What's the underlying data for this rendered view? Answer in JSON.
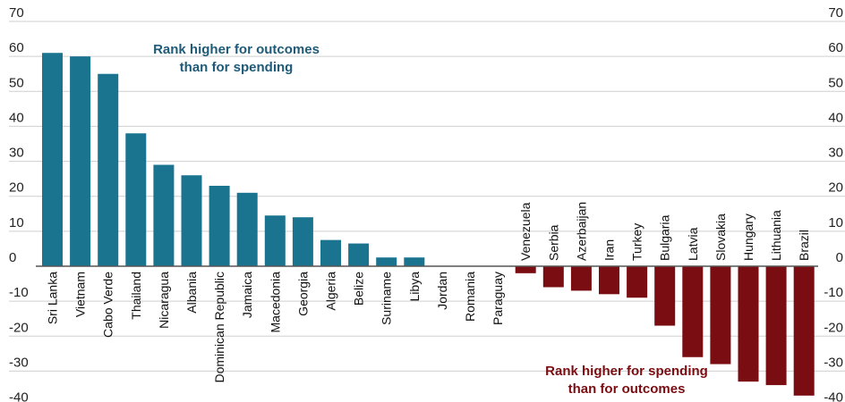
{
  "chart_data": {
    "type": "bar",
    "categories": [
      "Sri Lanka",
      "Vietnam",
      "Cabo Verde",
      "Thailand",
      "Nicaragua",
      "Albania",
      "Dominican Republic",
      "Jamaica",
      "Macedonia",
      "Georgia",
      "Algeria",
      "Belize",
      "Suriname",
      "Libya",
      "Jordan",
      "Romania",
      "Paraguay",
      "Venezuela",
      "Serbia",
      "Azerbaijan",
      "Iran",
      "Turkey",
      "Bulgaria",
      "Latvia",
      "Slovakia",
      "Hungary",
      "Lithuania",
      "Brazil"
    ],
    "values": [
      61,
      60,
      55,
      38,
      29,
      26,
      23,
      21,
      14.5,
      14,
      7.5,
      6.5,
      2.5,
      2.5,
      0,
      0,
      0,
      -2,
      -6,
      -7,
      -8,
      -9,
      -17,
      -26,
      -28,
      -33,
      -34,
      -37
    ],
    "ylim": [
      -40,
      70
    ],
    "yticks": [
      70,
      60,
      50,
      40,
      30,
      20,
      10,
      0,
      -10,
      -20,
      -30,
      -40
    ],
    "colors": {
      "positive": "#1a7490",
      "negative": "#7a0d12",
      "grid": "#cfcfcf",
      "zero_line": "#555555"
    },
    "annotations": {
      "positive": {
        "line1": "Rank higher for outcomes",
        "line2": "than for spending",
        "color": "#1f5a78"
      },
      "negative": {
        "line1": "Rank higher for spending",
        "line2": "than for outcomes",
        "color": "#7a0d12"
      }
    }
  }
}
